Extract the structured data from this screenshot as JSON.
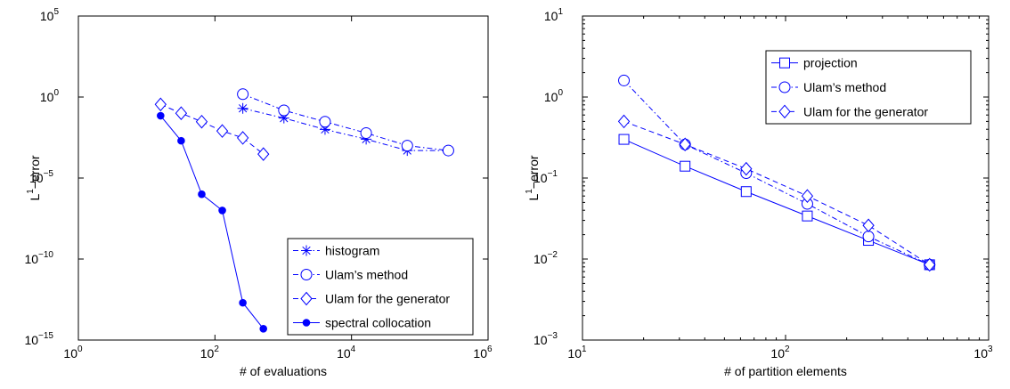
{
  "chart_data": [
    {
      "type": "line",
      "log_x": true,
      "log_y": true,
      "xlim": [
        1,
        1000000
      ],
      "ylim": [
        1e-15,
        100000
      ],
      "xlabel": "# of evaluations",
      "ylabel": "L1-error",
      "ylabel_main": "L",
      "ylabel_sup": "1",
      "ylabel_rest": "−error",
      "x_ticks": [
        {
          "base": "10",
          "exp": "0",
          "value": 1
        },
        {
          "base": "10",
          "exp": "2",
          "value": 100
        },
        {
          "base": "10",
          "exp": "4",
          "value": 10000
        },
        {
          "base": "10",
          "exp": "6",
          "value": 1000000
        }
      ],
      "y_ticks": [
        {
          "base": "10",
          "exp": "5",
          "value": 100000
        },
        {
          "base": "10",
          "exp": "0",
          "value": 1
        },
        {
          "base": "10",
          "exp": "−5",
          "value": 1e-05
        },
        {
          "base": "10",
          "exp": "−10",
          "value": 1e-10
        },
        {
          "base": "10",
          "exp": "−15",
          "value": 1e-15
        }
      ],
      "legend_position": "bottom-right",
      "series": [
        {
          "name": "histogram",
          "marker": "asterisk",
          "dash": "6,3,1.5,3",
          "filled": false,
          "color": "#0000ff",
          "x": [
            256,
            1024,
            4096,
            16384,
            65536,
            262144
          ],
          "y": [
            0.2,
            0.05,
            0.01,
            0.0025,
            0.0005,
            0.0005
          ]
        },
        {
          "name": "Ulam’s method",
          "marker": "circle",
          "dash": "6,3,1.5,3",
          "filled": false,
          "color": "#0000ff",
          "x": [
            256,
            1024,
            4096,
            16384,
            65536,
            262144
          ],
          "y": [
            1.5,
            0.15,
            0.03,
            0.006,
            0.001,
            0.0005
          ]
        },
        {
          "name": "Ulam for the generator",
          "marker": "diamond",
          "dash": "6,4",
          "filled": false,
          "color": "#0000ff",
          "x": [
            16,
            32,
            64,
            128,
            256,
            512
          ],
          "y": [
            0.35,
            0.1,
            0.03,
            0.008,
            0.003,
            0.0003
          ]
        },
        {
          "name": "spectral collocation",
          "marker": "dot",
          "dash": "",
          "filled": true,
          "color": "#0000ff",
          "x": [
            16,
            32,
            64,
            128,
            256,
            512
          ],
          "y": [
            0.07,
            0.002,
            1e-06,
            1e-07,
            2e-13,
            5e-15
          ]
        }
      ]
    },
    {
      "type": "line",
      "log_x": true,
      "log_y": true,
      "xlim": [
        10,
        1000
      ],
      "ylim": [
        0.001,
        10
      ],
      "xlabel": "# of partition elements",
      "ylabel": "L1-error",
      "ylabel_main": "L",
      "ylabel_sup": "1",
      "ylabel_rest": "−error",
      "x_ticks": [
        {
          "base": "10",
          "exp": "1",
          "value": 10
        },
        {
          "base": "10",
          "exp": "2",
          "value": 100
        },
        {
          "base": "10",
          "exp": "3",
          "value": 1000
        }
      ],
      "y_ticks": [
        {
          "base": "10",
          "exp": "1",
          "value": 10
        },
        {
          "base": "10",
          "exp": "0",
          "value": 1
        },
        {
          "base": "10",
          "exp": "−1",
          "value": 0.1
        },
        {
          "base": "10",
          "exp": "−2",
          "value": 0.01
        },
        {
          "base": "10",
          "exp": "−3",
          "value": 0.001
        }
      ],
      "legend_position": "top-right",
      "series": [
        {
          "name": "projection",
          "marker": "square",
          "dash": "",
          "filled": false,
          "color": "#0000ff",
          "x": [
            16,
            32,
            64,
            128,
            256,
            512
          ],
          "y": [
            0.3,
            0.14,
            0.068,
            0.034,
            0.017,
            0.0085
          ]
        },
        {
          "name": "Ulam’s method",
          "marker": "circle",
          "dash": "6,3,1.5,3",
          "filled": false,
          "color": "#0000ff",
          "x": [
            16,
            32,
            64,
            128,
            256,
            512
          ],
          "y": [
            1.6,
            0.26,
            0.115,
            0.048,
            0.019,
            0.0085
          ]
        },
        {
          "name": "Ulam for the generator",
          "marker": "diamond",
          "dash": "6,4",
          "filled": false,
          "color": "#0000ff",
          "x": [
            16,
            32,
            64,
            128,
            256,
            512
          ],
          "y": [
            0.5,
            0.26,
            0.13,
            0.06,
            0.026,
            0.0085
          ]
        }
      ]
    }
  ]
}
